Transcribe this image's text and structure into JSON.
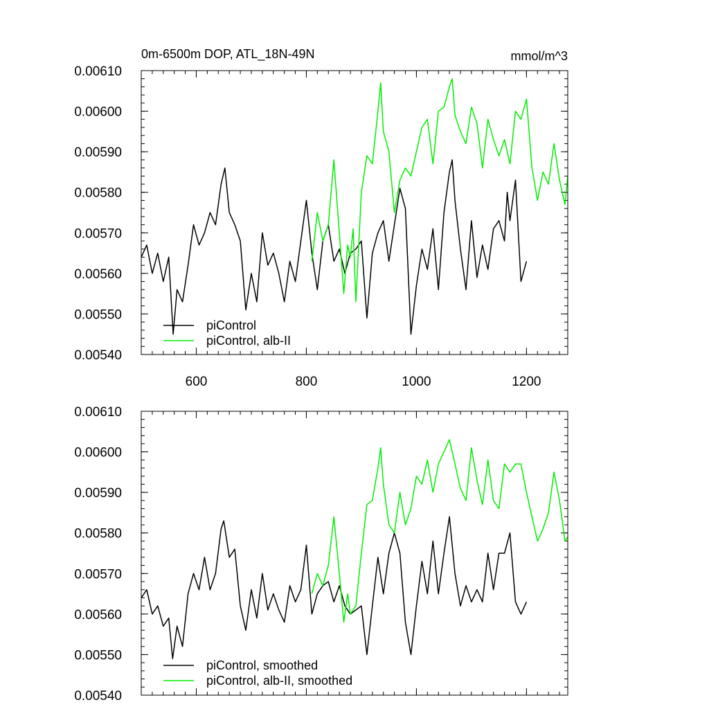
{
  "chart_data": [
    {
      "type": "line",
      "title": "0m-6500m DOP, ATL_18N-49N",
      "units": "mmol/m^3",
      "xlim": [
        500,
        1275
      ],
      "ylim": [
        0.0054,
        0.0061
      ],
      "xticks": [
        600,
        800,
        1000,
        1200
      ],
      "xtick_labels": [
        "600",
        "800",
        "1000",
        "1200"
      ],
      "yticks": [
        0.0054,
        0.0055,
        0.0056,
        0.0057,
        0.0058,
        0.0059,
        0.006,
        0.0061
      ],
      "ytick_labels": [
        "0.00540",
        "0.00550",
        "0.00560",
        "0.00570",
        "0.00580",
        "0.00590",
        "0.00600",
        "0.00610"
      ],
      "legend_position": "bottom-left",
      "series": [
        {
          "name": "piControl",
          "color": "#000000",
          "x": [
            500,
            510,
            520,
            530,
            540,
            550,
            558,
            565,
            575,
            585,
            595,
            605,
            615,
            625,
            635,
            645,
            652,
            660,
            670,
            680,
            690,
            700,
            710,
            720,
            730,
            740,
            750,
            760,
            770,
            780,
            790,
            800,
            810,
            820,
            830,
            840,
            850,
            860,
            870,
            880,
            890,
            900,
            910,
            920,
            930,
            940,
            950,
            960,
            970,
            980,
            990,
            1000,
            1010,
            1020,
            1030,
            1040,
            1050,
            1060,
            1065,
            1070,
            1080,
            1090,
            1100,
            1110,
            1120,
            1130,
            1140,
            1150,
            1160,
            1165,
            1170,
            1180,
            1190,
            1200
          ],
          "y": [
            0.00564,
            0.00567,
            0.0056,
            0.00565,
            0.00558,
            0.00564,
            0.00545,
            0.00556,
            0.00553,
            0.00562,
            0.00572,
            0.00567,
            0.0057,
            0.00575,
            0.00572,
            0.00582,
            0.00586,
            0.00575,
            0.00572,
            0.00568,
            0.00551,
            0.0056,
            0.00553,
            0.0057,
            0.00562,
            0.00565,
            0.0056,
            0.00553,
            0.00563,
            0.00558,
            0.00568,
            0.00578,
            0.00565,
            0.00556,
            0.00568,
            0.00572,
            0.00563,
            0.00566,
            0.0056,
            0.00565,
            0.00566,
            0.00568,
            0.00549,
            0.00565,
            0.0057,
            0.00573,
            0.00563,
            0.00572,
            0.00581,
            0.00576,
            0.00545,
            0.00557,
            0.00566,
            0.00561,
            0.00571,
            0.00556,
            0.00575,
            0.00585,
            0.00588,
            0.00578,
            0.00566,
            0.00556,
            0.00573,
            0.00559,
            0.00567,
            0.00561,
            0.00571,
            0.00573,
            0.00568,
            0.0058,
            0.00573,
            0.00583,
            0.00558,
            0.00563
          ]
        },
        {
          "name": "piControl, alb-II",
          "color": "#00ee00",
          "x": [
            810,
            820,
            830,
            840,
            850,
            860,
            868,
            875,
            880,
            885,
            890,
            900,
            910,
            920,
            930,
            935,
            940,
            950,
            960,
            970,
            980,
            990,
            1000,
            1010,
            1020,
            1030,
            1040,
            1050,
            1060,
            1065,
            1070,
            1080,
            1090,
            1100,
            1110,
            1120,
            1130,
            1140,
            1150,
            1160,
            1170,
            1180,
            1190,
            1200,
            1210,
            1220,
            1230,
            1240,
            1250,
            1260,
            1270,
            1275
          ],
          "y": [
            0.00563,
            0.00575,
            0.00568,
            0.00572,
            0.00588,
            0.0057,
            0.00555,
            0.00567,
            0.00564,
            0.00571,
            0.00553,
            0.0058,
            0.00589,
            0.00587,
            0.006,
            0.00607,
            0.00595,
            0.0059,
            0.00575,
            0.00583,
            0.00586,
            0.00584,
            0.0059,
            0.00596,
            0.00598,
            0.00587,
            0.006,
            0.00601,
            0.00606,
            0.00608,
            0.00599,
            0.00595,
            0.00592,
            0.00601,
            0.00597,
            0.00586,
            0.00598,
            0.00593,
            0.00589,
            0.00593,
            0.00587,
            0.006,
            0.00598,
            0.00603,
            0.00586,
            0.00578,
            0.00585,
            0.00582,
            0.00592,
            0.00583,
            0.00577,
            0.00584
          ]
        }
      ]
    },
    {
      "type": "line",
      "xlim": [
        500,
        1275
      ],
      "ylim": [
        0.0054,
        0.0061
      ],
      "xticks": [
        600,
        800,
        1000,
        1200
      ],
      "yticks": [
        0.0054,
        0.0055,
        0.0056,
        0.0057,
        0.0058,
        0.0059,
        0.006,
        0.0061
      ],
      "ytick_labels": [
        "0.00540",
        "0.00550",
        "0.00560",
        "0.00570",
        "0.00580",
        "0.00590",
        "0.00600",
        "0.00610"
      ],
      "legend_position": "bottom-left",
      "series": [
        {
          "name": "piControl, smoothed",
          "color": "#000000",
          "x": [
            500,
            510,
            520,
            530,
            540,
            550,
            557,
            565,
            575,
            585,
            595,
            605,
            615,
            625,
            635,
            645,
            650,
            660,
            670,
            680,
            690,
            700,
            710,
            720,
            730,
            740,
            750,
            760,
            770,
            780,
            790,
            800,
            810,
            820,
            830,
            840,
            850,
            860,
            870,
            880,
            890,
            900,
            910,
            920,
            930,
            940,
            950,
            960,
            970,
            980,
            990,
            1000,
            1010,
            1020,
            1030,
            1040,
            1050,
            1060,
            1070,
            1080,
            1090,
            1100,
            1110,
            1120,
            1130,
            1140,
            1150,
            1160,
            1170,
            1180,
            1190,
            1200
          ],
          "y": [
            0.00564,
            0.00566,
            0.0056,
            0.00562,
            0.00557,
            0.00559,
            0.00549,
            0.00557,
            0.00552,
            0.00565,
            0.0057,
            0.00566,
            0.00574,
            0.00566,
            0.0057,
            0.00581,
            0.00583,
            0.00574,
            0.00576,
            0.00562,
            0.00556,
            0.00566,
            0.00559,
            0.0057,
            0.00561,
            0.00565,
            0.00561,
            0.00558,
            0.00567,
            0.00563,
            0.00566,
            0.00577,
            0.0056,
            0.00565,
            0.00567,
            0.00568,
            0.00563,
            0.00567,
            0.00562,
            0.0056,
            0.00561,
            0.00562,
            0.0055,
            0.00562,
            0.00574,
            0.00565,
            0.00575,
            0.0058,
            0.00575,
            0.00558,
            0.0055,
            0.00562,
            0.00573,
            0.00565,
            0.00578,
            0.00565,
            0.00575,
            0.00584,
            0.0057,
            0.00562,
            0.00567,
            0.00563,
            0.00566,
            0.00563,
            0.00575,
            0.00566,
            0.00575,
            0.00575,
            0.0058,
            0.00563,
            0.0056,
            0.00563
          ]
        },
        {
          "name": "piControl, alb-II, smoothed",
          "color": "#00ee00",
          "x": [
            810,
            820,
            830,
            840,
            850,
            860,
            868,
            875,
            880,
            890,
            900,
            910,
            920,
            930,
            935,
            940,
            950,
            960,
            970,
            980,
            990,
            1000,
            1010,
            1020,
            1030,
            1040,
            1050,
            1060,
            1070,
            1080,
            1090,
            1100,
            1110,
            1120,
            1130,
            1140,
            1150,
            1160,
            1170,
            1180,
            1190,
            1200,
            1210,
            1220,
            1230,
            1240,
            1250,
            1260,
            1270,
            1275
          ],
          "y": [
            0.00565,
            0.0057,
            0.00567,
            0.00572,
            0.00584,
            0.0057,
            0.00558,
            0.00565,
            0.0056,
            0.00562,
            0.00575,
            0.00587,
            0.00588,
            0.00596,
            0.00601,
            0.00592,
            0.00582,
            0.0058,
            0.0059,
            0.00582,
            0.00586,
            0.00594,
            0.00592,
            0.00598,
            0.0059,
            0.00597,
            0.006,
            0.00603,
            0.00597,
            0.00591,
            0.00588,
            0.00601,
            0.00593,
            0.00587,
            0.00598,
            0.00588,
            0.00586,
            0.00597,
            0.00595,
            0.00597,
            0.00597,
            0.0059,
            0.00584,
            0.00578,
            0.00581,
            0.00585,
            0.00595,
            0.00588,
            0.00578,
            0.00579
          ]
        }
      ]
    }
  ]
}
